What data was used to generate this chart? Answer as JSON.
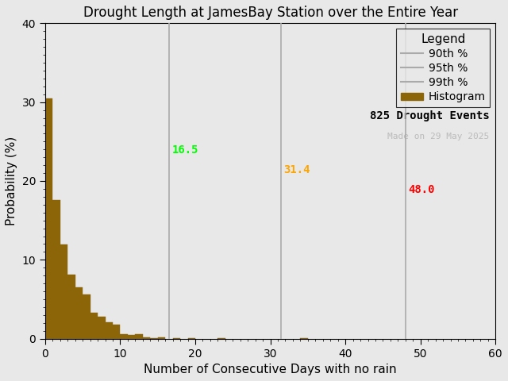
{
  "title": "Drought Length at JamesBay Station over the Entire Year",
  "xlabel": "Number of Consecutive Days with no rain",
  "ylabel": "Probability (%)",
  "xlim": [
    0,
    60
  ],
  "ylim": [
    0,
    40
  ],
  "xticks": [
    0,
    10,
    20,
    30,
    40,
    50,
    60
  ],
  "yticks": [
    0,
    10,
    20,
    30,
    40
  ],
  "bar_color": "#8B6508",
  "bar_edgecolor": "#8B6508",
  "background_color": "#e8e8e8",
  "plot_bg_color": "#e8e8e8",
  "percentile_90": 16.5,
  "percentile_95": 31.4,
  "percentile_99": 48.0,
  "percentile_90_color": "#00ff00",
  "percentile_95_color": "#ffa500",
  "percentile_99_color": "#ff0000",
  "line_legend_color": "#aaaaaa",
  "n_events": 825,
  "made_on": "Made on 29 May 2025",
  "bin_values": [
    30.5,
    17.6,
    11.9,
    8.1,
    6.5,
    5.6,
    3.3,
    2.8,
    2.1,
    1.8,
    0.6,
    0.5,
    0.6,
    0.2,
    0.1,
    0.2,
    0.0,
    0.1,
    0.0,
    0.1,
    0.0,
    0.0,
    0.0,
    0.1,
    0.0,
    0.0,
    0.0,
    0.0,
    0.0,
    0.0,
    0.0,
    0.0,
    0.0,
    0.0,
    0.1,
    0.0,
    0.0,
    0.0,
    0.0,
    0.0,
    0.0,
    0.0,
    0.0,
    0.0,
    0.0,
    0.0,
    0.0,
    0.0,
    0.0,
    0.0,
    0.0,
    0.0,
    0.0,
    0.0,
    0.0,
    0.0,
    0.0,
    0.0,
    0.0,
    0.0
  ],
  "bin_width": 1,
  "title_fontsize": 12,
  "axis_fontsize": 11,
  "tick_fontsize": 10,
  "legend_fontsize": 10
}
